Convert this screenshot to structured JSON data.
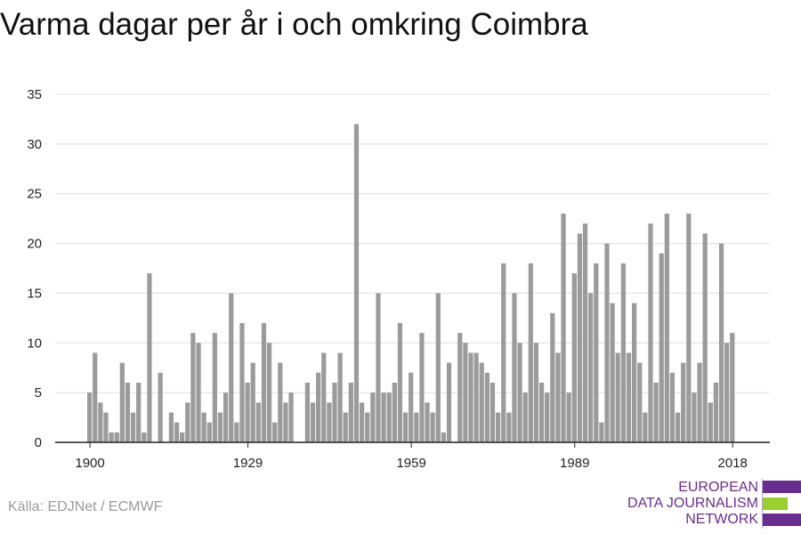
{
  "title": "Varma dagar per år i och omkring Coimbra",
  "source": "Källa: EDJNet / ECMWF",
  "logo": {
    "lines": [
      "EUROPEAN",
      "DATA JOURNALISM",
      "NETWORK"
    ],
    "colors": {
      "purple": "#6a2c91",
      "green": "#9bcf2e"
    }
  },
  "colors": {
    "bar": "#9b9b9b",
    "grid": "#dddddd",
    "axis": "#222222"
  },
  "chart_data": {
    "type": "bar",
    "title": "Varma dagar per år i och omkring Coimbra",
    "xlabel": "",
    "ylabel": "",
    "x_start": 1900,
    "x_end": 2021,
    "xticks": [
      1900,
      1929,
      1959,
      1989,
      2018
    ],
    "yticks": [
      0,
      5,
      10,
      15,
      20,
      25,
      30,
      35
    ],
    "ylim": [
      0,
      35
    ],
    "grid": true,
    "x": [
      1900,
      1901,
      1902,
      1903,
      1904,
      1905,
      1906,
      1907,
      1908,
      1909,
      1910,
      1911,
      1912,
      1913,
      1914,
      1915,
      1916,
      1917,
      1918,
      1919,
      1920,
      1921,
      1922,
      1923,
      1924,
      1925,
      1926,
      1927,
      1928,
      1929,
      1930,
      1931,
      1932,
      1933,
      1934,
      1935,
      1936,
      1937,
      1938,
      1939,
      1940,
      1941,
      1942,
      1943,
      1944,
      1945,
      1946,
      1947,
      1948,
      1949,
      1950,
      1951,
      1952,
      1953,
      1954,
      1955,
      1956,
      1957,
      1958,
      1959,
      1960,
      1961,
      1962,
      1963,
      1964,
      1965,
      1966,
      1967,
      1968,
      1969,
      1970,
      1971,
      1972,
      1973,
      1974,
      1975,
      1976,
      1977,
      1978,
      1979,
      1980,
      1981,
      1982,
      1983,
      1984,
      1985,
      1986,
      1987,
      1988,
      1989,
      1990,
      1991,
      1992,
      1993,
      1994,
      1995,
      1996,
      1997,
      1998,
      1999,
      2000,
      2001,
      2002,
      2003,
      2004,
      2005,
      2006,
      2007,
      2008,
      2009,
      2010,
      2011,
      2012,
      2013,
      2014,
      2015,
      2016,
      2017,
      2018,
      2019,
      2020
    ],
    "values": [
      5,
      9,
      4,
      3,
      1,
      1,
      8,
      6,
      3,
      6,
      1,
      17,
      0,
      7,
      0,
      3,
      2,
      1,
      4,
      11,
      10,
      3,
      2,
      11,
      3,
      5,
      15,
      2,
      12,
      6,
      8,
      4,
      12,
      10,
      2,
      8,
      4,
      5,
      0,
      0,
      6,
      4,
      7,
      9,
      4,
      6,
      9,
      3,
      6,
      32,
      4,
      3,
      5,
      15,
      5,
      5,
      6,
      12,
      3,
      7,
      3,
      11,
      4,
      3,
      15,
      1,
      8,
      0,
      11,
      10,
      9,
      9,
      8,
      7,
      6,
      3,
      18,
      3,
      15,
      10,
      5,
      18,
      10,
      6,
      5,
      13,
      9,
      23,
      5,
      17,
      21,
      22,
      15,
      18,
      2,
      20,
      14,
      9,
      18,
      9,
      14,
      8,
      3,
      22,
      6,
      19,
      23,
      7,
      3,
      8,
      23,
      5,
      8,
      21,
      4,
      6,
      20,
      10,
      11,
      0,
      0
    ]
  }
}
